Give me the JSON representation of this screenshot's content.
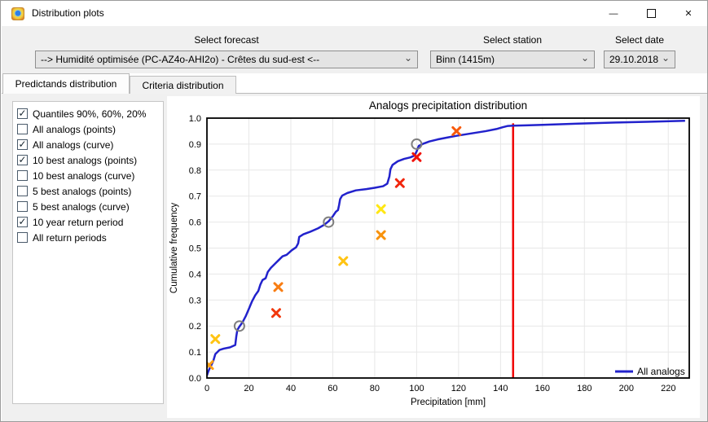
{
  "window": {
    "title": "Distribution plots",
    "controls": {
      "minimize": "—",
      "maximize": "□",
      "close": "✕"
    }
  },
  "header": {
    "forecast": {
      "label": "Select forecast",
      "value": "--> Humidité optimisée (PC-AZ4o-AHI2o) - Crêtes du sud-est <--"
    },
    "station": {
      "label": "Select station",
      "value": "Binn (1415m)"
    },
    "date": {
      "label": "Select date",
      "value": "29.10.2018"
    }
  },
  "tabs": [
    {
      "label": "Predictands distribution",
      "active": true
    },
    {
      "label": "Criteria distribution",
      "active": false
    }
  ],
  "options": [
    {
      "label": "Quantiles 90%, 60%, 20%",
      "checked": true
    },
    {
      "label": "All analogs (points)",
      "checked": false
    },
    {
      "label": "All analogs (curve)",
      "checked": true
    },
    {
      "label": "10 best analogs (points)",
      "checked": true
    },
    {
      "label": "10 best analogs (curve)",
      "checked": false
    },
    {
      "label": "5 best analogs (points)",
      "checked": false
    },
    {
      "label": "5 best analogs (curve)",
      "checked": false
    },
    {
      "label": "10 year return period",
      "checked": true
    },
    {
      "label": "All return periods",
      "checked": false
    }
  ],
  "chart_data": {
    "type": "line",
    "title": "Analogs precipitation distribution",
    "xlabel": "Precipitation [mm]",
    "ylabel": "Cumulative frequency",
    "xlim": [
      0,
      230
    ],
    "ylim": [
      0,
      1
    ],
    "x_ticks": [
      0,
      20,
      40,
      60,
      80,
      100,
      120,
      140,
      160,
      180,
      200,
      220
    ],
    "y_ticks": [
      0.0,
      0.1,
      0.2,
      0.3,
      0.4,
      0.5,
      0.6,
      0.7,
      0.8,
      0.9,
      1.0
    ],
    "grid": true,
    "legend": {
      "label": "All analogs",
      "color": "#2222CC",
      "position": "bottom-right"
    },
    "curve": {
      "name": "All analogs (curve)",
      "color": "#2222CC",
      "points": [
        [
          0,
          0.01
        ],
        [
          0.5,
          0.022
        ],
        [
          1,
          0.032
        ],
        [
          2,
          0.048
        ],
        [
          3,
          0.065
        ],
        [
          4,
          0.092
        ],
        [
          5,
          0.1
        ],
        [
          6,
          0.108
        ],
        [
          8,
          0.113
        ],
        [
          11,
          0.118
        ],
        [
          13.5,
          0.127
        ],
        [
          14,
          0.16
        ],
        [
          14.5,
          0.185
        ],
        [
          15.5,
          0.198
        ],
        [
          17,
          0.215
        ],
        [
          18.5,
          0.238
        ],
        [
          20,
          0.266
        ],
        [
          21.5,
          0.295
        ],
        [
          23,
          0.318
        ],
        [
          24.5,
          0.335
        ],
        [
          25.5,
          0.36
        ],
        [
          26.5,
          0.377
        ],
        [
          28,
          0.384
        ],
        [
          29,
          0.408
        ],
        [
          30.5,
          0.424
        ],
        [
          32.5,
          0.44
        ],
        [
          34,
          0.452
        ],
        [
          36,
          0.468
        ],
        [
          38,
          0.474
        ],
        [
          40.5,
          0.492
        ],
        [
          42.5,
          0.503
        ],
        [
          43.5,
          0.518
        ],
        [
          44,
          0.543
        ],
        [
          46,
          0.553
        ],
        [
          49,
          0.562
        ],
        [
          53,
          0.576
        ],
        [
          56,
          0.59
        ],
        [
          58,
          0.603
        ],
        [
          60,
          0.622
        ],
        [
          61.5,
          0.64
        ],
        [
          62.5,
          0.646
        ],
        [
          63,
          0.665
        ],
        [
          63.5,
          0.688
        ],
        [
          64.5,
          0.702
        ],
        [
          67,
          0.712
        ],
        [
          71,
          0.722
        ],
        [
          76,
          0.727
        ],
        [
          80,
          0.732
        ],
        [
          84,
          0.738
        ],
        [
          86,
          0.748
        ],
        [
          87,
          0.775
        ],
        [
          87.5,
          0.803
        ],
        [
          88.5,
          0.82
        ],
        [
          91,
          0.834
        ],
        [
          94,
          0.843
        ],
        [
          97,
          0.849
        ],
        [
          99,
          0.856
        ],
        [
          100,
          0.872
        ],
        [
          101,
          0.893
        ],
        [
          103,
          0.901
        ],
        [
          106,
          0.91
        ],
        [
          110,
          0.918
        ],
        [
          115,
          0.926
        ],
        [
          119,
          0.932
        ],
        [
          126,
          0.941
        ],
        [
          133,
          0.95
        ],
        [
          138,
          0.958
        ],
        [
          141,
          0.965
        ],
        [
          143.5,
          0.97
        ],
        [
          146,
          0.971
        ],
        [
          152,
          0.972
        ],
        [
          160,
          0.974
        ],
        [
          177,
          0.979
        ],
        [
          195,
          0.983
        ],
        [
          210,
          0.986
        ],
        [
          228,
          0.99
        ]
      ]
    },
    "quantile_points": {
      "name": "Quantiles 90%, 60%, 20%",
      "color": "#7F7F7F",
      "points": [
        [
          15.5,
          0.2
        ],
        [
          58,
          0.6
        ],
        [
          100,
          0.9
        ]
      ]
    },
    "best_analog_points": {
      "name": "10 best analogs (points)",
      "points": [
        {
          "x": 1,
          "y": 0.05,
          "color": "#FFA013"
        },
        {
          "x": 4,
          "y": 0.15,
          "color": "#FFC413"
        },
        {
          "x": 33,
          "y": 0.25,
          "color": "#F1380C"
        },
        {
          "x": 34,
          "y": 0.35,
          "color": "#F87D13"
        },
        {
          "x": 65,
          "y": 0.45,
          "color": "#FFC413"
        },
        {
          "x": 83,
          "y": 0.55,
          "color": "#F8920C"
        },
        {
          "x": 83,
          "y": 0.65,
          "color": "#FFE713"
        },
        {
          "x": 92,
          "y": 0.75,
          "color": "#F1250C"
        },
        {
          "x": 100,
          "y": 0.85,
          "color": "#F1130C"
        },
        {
          "x": 119,
          "y": 0.95,
          "color": "#F85A0C"
        }
      ]
    },
    "return_period_line": {
      "name": "10 year return period",
      "x": 146,
      "y_top": 0.98,
      "color": "#F00000"
    }
  }
}
